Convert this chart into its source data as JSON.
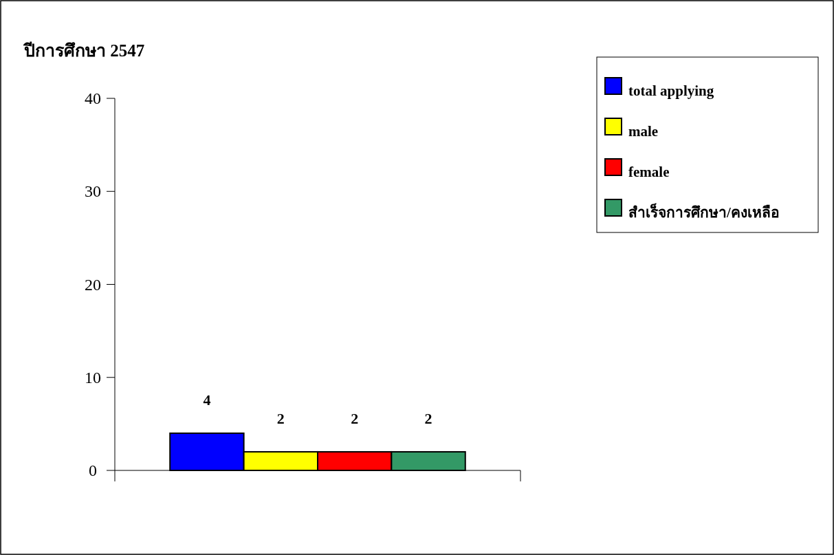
{
  "chart_data": {
    "type": "bar",
    "title": "ปีการศึกษา 2547",
    "categories": [
      null
    ],
    "series": [
      {
        "name": "total applying",
        "color": "#0000ff",
        "values": [
          4
        ]
      },
      {
        "name": "male",
        "color": "#ffff00",
        "values": [
          2
        ]
      },
      {
        "name": "female",
        "color": "#ff0000",
        "values": [
          2
        ]
      },
      {
        "name": "สำเร็จการศึกษา/คงเหลือ",
        "color": "#339966",
        "values": [
          2
        ]
      }
    ],
    "ylim": [
      0,
      40
    ],
    "yticks": [
      0,
      10,
      20,
      30,
      40
    ],
    "data_labels": true,
    "legend": "right",
    "grid": false
  }
}
